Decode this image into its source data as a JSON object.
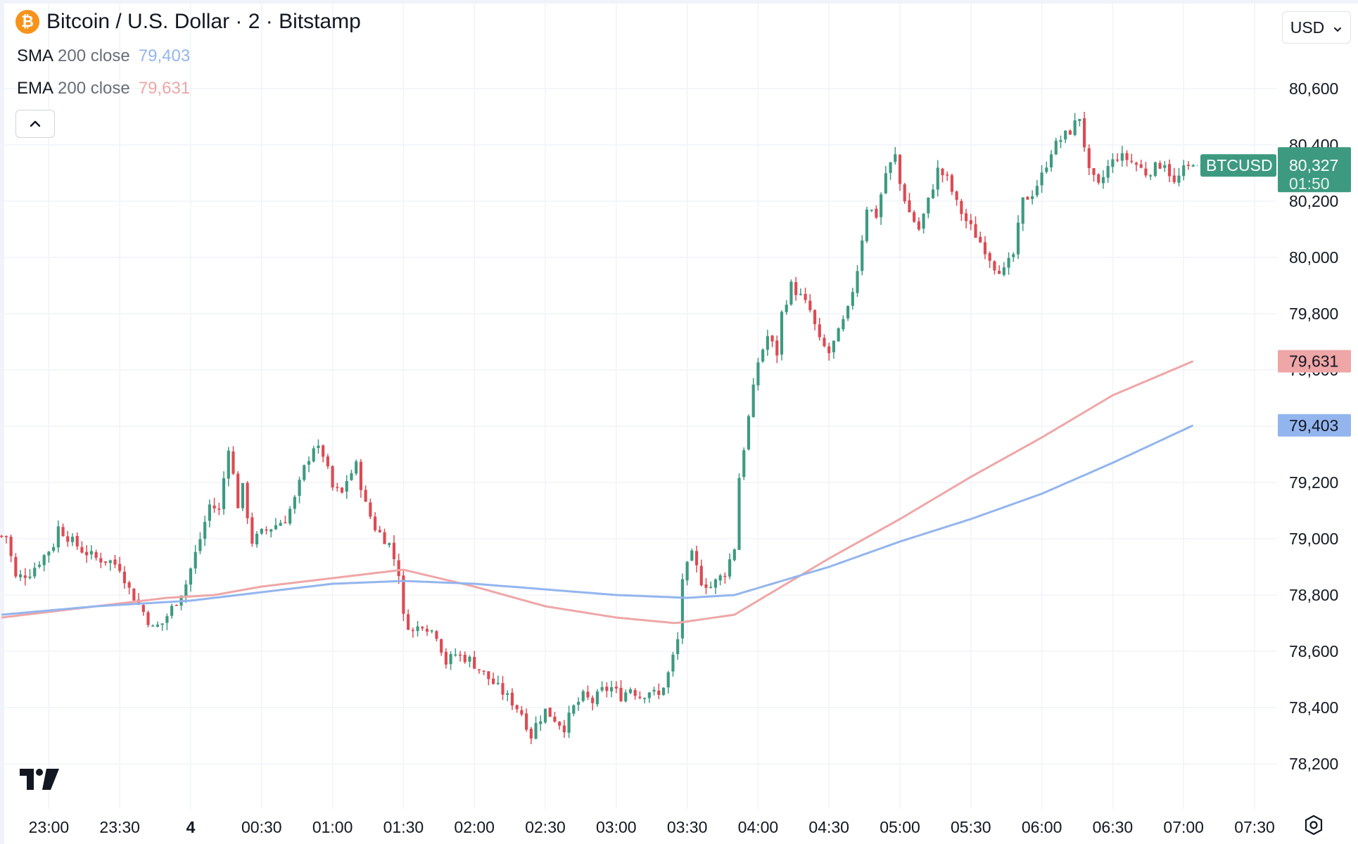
{
  "header": {
    "title": "Bitcoin / U.S. Dollar · 2 · Bitstamp",
    "coin_symbol": "₿"
  },
  "indicators": [
    {
      "name": "SMA",
      "param": "200 close",
      "value": "79,403",
      "color": "#93b5ee"
    },
    {
      "name": "EMA",
      "param": "200 close",
      "value": "79,631",
      "color": "#efa6a6"
    }
  ],
  "collapse_label": "⌃",
  "currency": {
    "value": "USD",
    "chevron": "⌄"
  },
  "logo_text": "17",
  "price_badge": {
    "symbol": "BTCUSD",
    "price": "80,327",
    "countdown": "01:50",
    "color": "#3d9a80"
  },
  "colors": {
    "up": "#3d9a80",
    "down": "#dd4a53",
    "sma": "#93b5ee",
    "ema": "#efa6a6",
    "grid": "#f0f3fa"
  },
  "chart_data": {
    "type": "candlestick",
    "symbol": "BTCUSD",
    "exchange": "Bitstamp",
    "interval": "2",
    "ylim": [
      78100,
      80750
    ],
    "y_ticks": [
      78200,
      78400,
      78600,
      78800,
      79000,
      79200,
      79400,
      79600,
      79800,
      80000,
      80200,
      80400,
      80600
    ],
    "x_ticks": [
      "23:00",
      "23:30",
      "4",
      "00:30",
      "01:00",
      "01:30",
      "02:00",
      "02:30",
      "03:00",
      "03:30",
      "04:00",
      "04:30",
      "05:00",
      "05:30",
      "06:00",
      "06:30",
      "07:00",
      "07:30"
    ],
    "x_tick_minutes": [
      -60,
      -30,
      0,
      30,
      60,
      90,
      120,
      150,
      180,
      210,
      240,
      270,
      300,
      330,
      360,
      390,
      420,
      450
    ],
    "grid": true,
    "close_anchors": [
      [
        -78,
        79010
      ],
      [
        -74,
        78860
      ],
      [
        -68,
        78880
      ],
      [
        -64,
        78920
      ],
      [
        -58,
        78980
      ],
      [
        -56,
        79040
      ],
      [
        -50,
        78990
      ],
      [
        -46,
        78960
      ],
      [
        -40,
        78930
      ],
      [
        -34,
        78920
      ],
      [
        -30,
        78900
      ],
      [
        -26,
        78820
      ],
      [
        -20,
        78740
      ],
      [
        -16,
        78680
      ],
      [
        -12,
        78700
      ],
      [
        -6,
        78780
      ],
      [
        -2,
        78840
      ],
      [
        4,
        79000
      ],
      [
        8,
        79120
      ],
      [
        12,
        79100
      ],
      [
        16,
        79330
      ],
      [
        20,
        79120
      ],
      [
        22,
        79180
      ],
      [
        26,
        78990
      ],
      [
        30,
        79020
      ],
      [
        34,
        79040
      ],
      [
        40,
        79070
      ],
      [
        44,
        79140
      ],
      [
        48,
        79250
      ],
      [
        52,
        79330
      ],
      [
        56,
        79300
      ],
      [
        60,
        79180
      ],
      [
        64,
        79160
      ],
      [
        66,
        79210
      ],
      [
        70,
        79260
      ],
      [
        74,
        79120
      ],
      [
        78,
        79040
      ],
      [
        84,
        78980
      ],
      [
        88,
        78880
      ],
      [
        90,
        78720
      ],
      [
        94,
        78670
      ],
      [
        98,
        78700
      ],
      [
        104,
        78660
      ],
      [
        108,
        78560
      ],
      [
        112,
        78590
      ],
      [
        118,
        78570
      ],
      [
        124,
        78520
      ],
      [
        130,
        78470
      ],
      [
        136,
        78420
      ],
      [
        140,
        78380
      ],
      [
        144,
        78300
      ],
      [
        146,
        78340
      ],
      [
        150,
        78390
      ],
      [
        154,
        78360
      ],
      [
        158,
        78330
      ],
      [
        162,
        78400
      ],
      [
        166,
        78440
      ],
      [
        170,
        78420
      ],
      [
        174,
        78460
      ],
      [
        178,
        78470
      ],
      [
        182,
        78440
      ],
      [
        186,
        78470
      ],
      [
        190,
        78440
      ],
      [
        194,
        78460
      ],
      [
        198,
        78440
      ],
      [
        202,
        78520
      ],
      [
        206,
        78640
      ],
      [
        208,
        78860
      ],
      [
        212,
        78940
      ],
      [
        216,
        78850
      ],
      [
        220,
        78830
      ],
      [
        226,
        78880
      ],
      [
        230,
        78970
      ],
      [
        232,
        79220
      ],
      [
        236,
        79430
      ],
      [
        240,
        79630
      ],
      [
        244,
        79720
      ],
      [
        248,
        79660
      ],
      [
        250,
        79800
      ],
      [
        254,
        79900
      ],
      [
        258,
        79860
      ],
      [
        262,
        79810
      ],
      [
        266,
        79700
      ],
      [
        270,
        79660
      ],
      [
        274,
        79730
      ],
      [
        278,
        79810
      ],
      [
        282,
        79960
      ],
      [
        286,
        80180
      ],
      [
        290,
        80150
      ],
      [
        294,
        80300
      ],
      [
        298,
        80360
      ],
      [
        300,
        80260
      ],
      [
        304,
        80160
      ],
      [
        308,
        80100
      ],
      [
        312,
        80200
      ],
      [
        316,
        80310
      ],
      [
        320,
        80280
      ],
      [
        324,
        80190
      ],
      [
        328,
        80130
      ],
      [
        332,
        80080
      ],
      [
        336,
        80030
      ],
      [
        340,
        79970
      ],
      [
        344,
        79950
      ],
      [
        348,
        80010
      ],
      [
        352,
        80200
      ],
      [
        356,
        80230
      ],
      [
        360,
        80290
      ],
      [
        364,
        80380
      ],
      [
        368,
        80420
      ],
      [
        372,
        80450
      ],
      [
        376,
        80500
      ],
      [
        380,
        80300
      ],
      [
        384,
        80250
      ],
      [
        388,
        80320
      ],
      [
        392,
        80360
      ],
      [
        396,
        80350
      ],
      [
        400,
        80330
      ],
      [
        404,
        80300
      ],
      [
        408,
        80320
      ],
      [
        412,
        80340
      ],
      [
        416,
        80260
      ],
      [
        420,
        80310
      ],
      [
        424,
        80327
      ]
    ],
    "sma_anchors": [
      [
        -80,
        78730
      ],
      [
        -40,
        78760
      ],
      [
        0,
        78780
      ],
      [
        30,
        78810
      ],
      [
        60,
        78840
      ],
      [
        90,
        78850
      ],
      [
        120,
        78840
      ],
      [
        150,
        78820
      ],
      [
        180,
        78800
      ],
      [
        210,
        78790
      ],
      [
        230,
        78800
      ],
      [
        250,
        78850
      ],
      [
        270,
        78900
      ],
      [
        300,
        78990
      ],
      [
        330,
        79070
      ],
      [
        360,
        79160
      ],
      [
        390,
        79270
      ],
      [
        424,
        79403
      ]
    ],
    "ema_anchors": [
      [
        -80,
        78720
      ],
      [
        -40,
        78760
      ],
      [
        -10,
        78790
      ],
      [
        10,
        78800
      ],
      [
        30,
        78830
      ],
      [
        60,
        78860
      ],
      [
        90,
        78890
      ],
      [
        120,
        78830
      ],
      [
        150,
        78760
      ],
      [
        180,
        78720
      ],
      [
        205,
        78700
      ],
      [
        230,
        78730
      ],
      [
        250,
        78830
      ],
      [
        270,
        78930
      ],
      [
        300,
        79070
      ],
      [
        330,
        79220
      ],
      [
        360,
        79360
      ],
      [
        390,
        79510
      ],
      [
        424,
        79631
      ]
    ],
    "candle_interval_minutes": 2,
    "start_minute": -80,
    "end_minute": 424
  }
}
